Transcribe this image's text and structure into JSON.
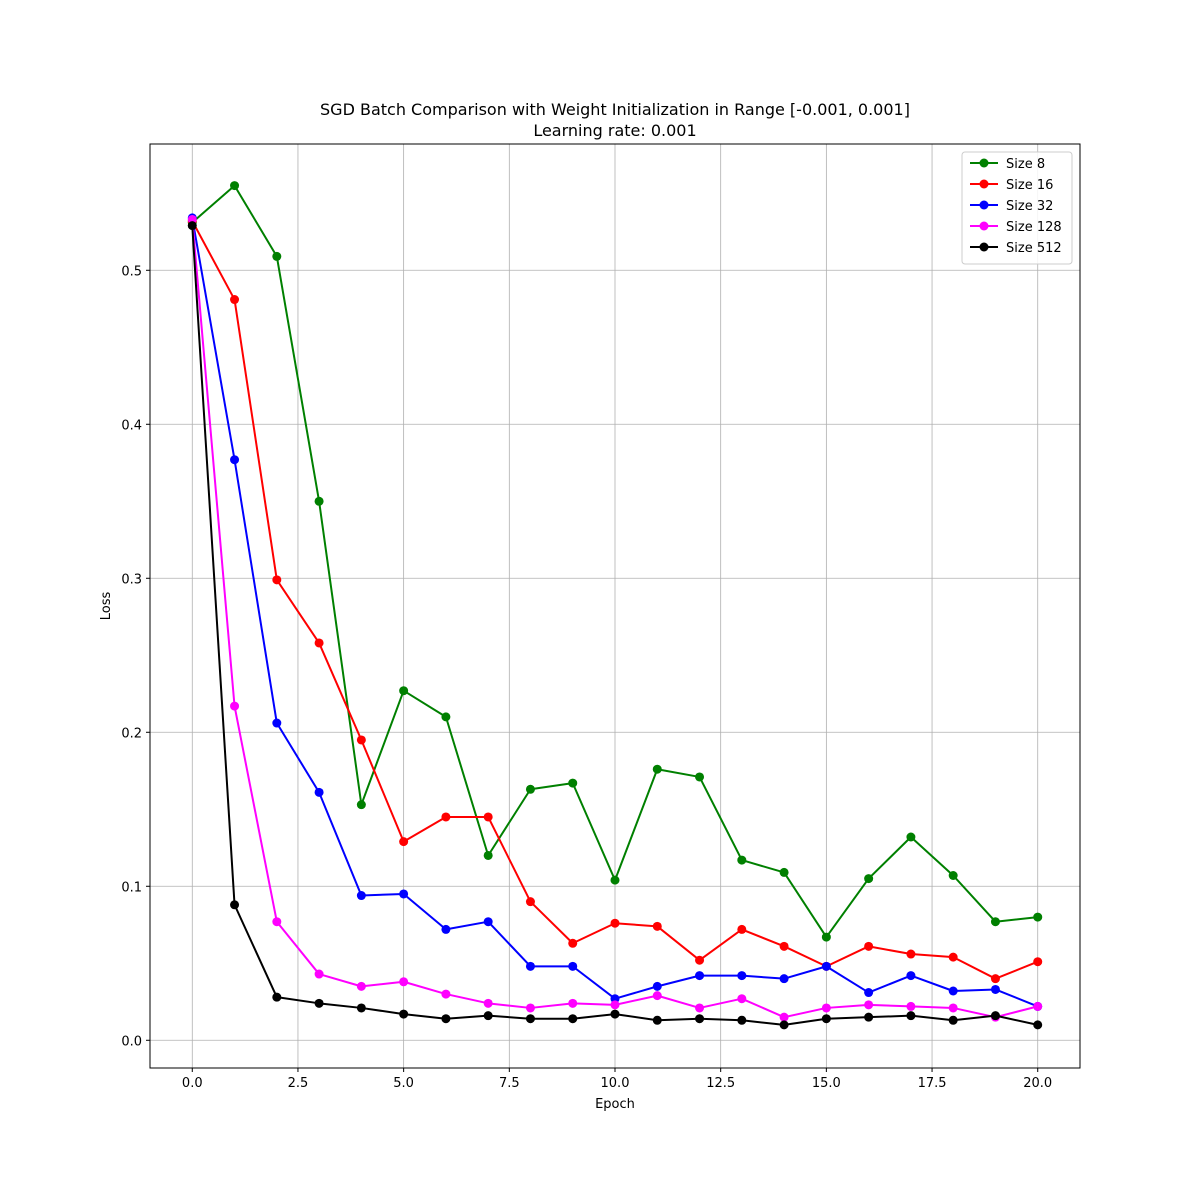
{
  "chart_data": {
    "type": "line",
    "title": "SGD Batch Comparison with Weight Initialization in Range [-0.001, 0.001]",
    "subtitle": "Learning rate: 0.001",
    "xlabel": "Epoch",
    "ylabel": "Loss",
    "xlim": [
      -1.0,
      21.0
    ],
    "ylim": [
      -0.018,
      0.582
    ],
    "xticks": [
      0.0,
      2.5,
      5.0,
      7.5,
      10.0,
      12.5,
      15.0,
      17.5,
      20.0
    ],
    "xtick_labels": [
      "0.0",
      "2.5",
      "5.0",
      "7.5",
      "10.0",
      "12.5",
      "15.0",
      "17.5",
      "20.0"
    ],
    "yticks": [
      0.0,
      0.1,
      0.2,
      0.3,
      0.4,
      0.5
    ],
    "ytick_labels": [
      "0.0",
      "0.1",
      "0.2",
      "0.3",
      "0.4",
      "0.5"
    ],
    "grid": true,
    "legend_position": "top-right",
    "x": [
      0,
      1,
      2,
      3,
      4,
      5,
      6,
      7,
      8,
      9,
      10,
      11,
      12,
      13,
      14,
      15,
      16,
      17,
      18,
      19,
      20
    ],
    "series": [
      {
        "name": "Size 8",
        "color": "#008000",
        "values": [
          0.531,
          0.555,
          0.509,
          0.35,
          0.153,
          0.227,
          0.21,
          0.12,
          0.163,
          0.167,
          0.104,
          0.176,
          0.171,
          0.117,
          0.109,
          0.067,
          0.105,
          0.132,
          0.107,
          0.077,
          0.08
        ]
      },
      {
        "name": "Size 16",
        "color": "#ff0000",
        "values": [
          0.532,
          0.481,
          0.299,
          0.258,
          0.195,
          0.129,
          0.145,
          0.145,
          0.09,
          0.063,
          0.076,
          0.074,
          0.052,
          0.072,
          0.061,
          0.048,
          0.061,
          0.056,
          0.054,
          0.04,
          0.051
        ]
      },
      {
        "name": "Size 32",
        "color": "#0000ff",
        "values": [
          0.534,
          0.377,
          0.206,
          0.161,
          0.094,
          0.095,
          0.072,
          0.077,
          0.048,
          0.048,
          0.027,
          0.035,
          0.042,
          0.042,
          0.04,
          0.048,
          0.031,
          0.042,
          0.032,
          0.033,
          0.022
        ]
      },
      {
        "name": "Size 128",
        "color": "#ff00ff",
        "values": [
          0.533,
          0.217,
          0.077,
          0.043,
          0.035,
          0.038,
          0.03,
          0.024,
          0.021,
          0.024,
          0.023,
          0.029,
          0.021,
          0.027,
          0.015,
          0.021,
          0.023,
          0.022,
          0.021,
          0.015,
          0.022
        ]
      },
      {
        "name": "Size 512",
        "color": "#000000",
        "values": [
          0.529,
          0.088,
          0.028,
          0.024,
          0.021,
          0.017,
          0.014,
          0.016,
          0.014,
          0.014,
          0.017,
          0.013,
          0.014,
          0.013,
          0.01,
          0.014,
          0.015,
          0.016,
          0.013,
          0.016,
          0.01
        ]
      }
    ]
  }
}
